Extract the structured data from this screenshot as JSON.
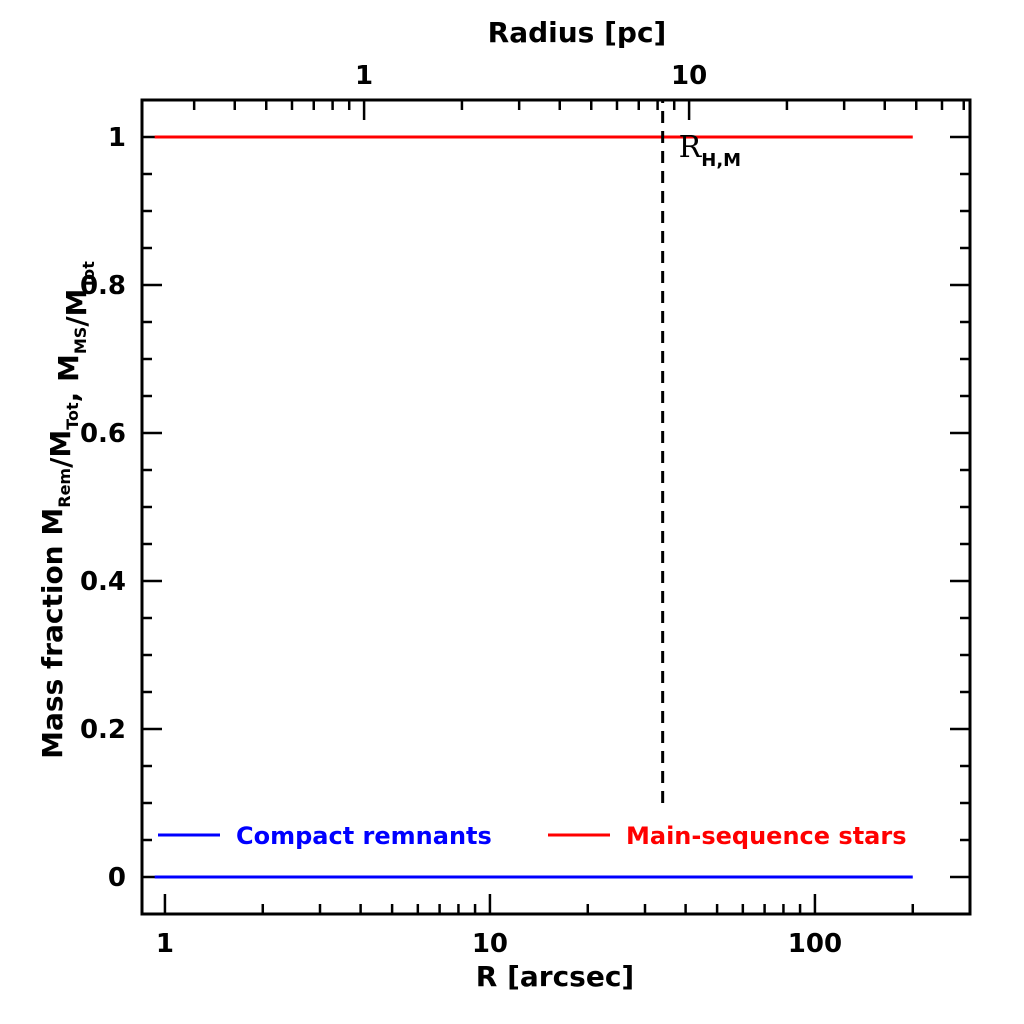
{
  "chart_data": {
    "type": "line",
    "xlabel": "R [arcsec]",
    "xlabel_top": "Radius [pc]",
    "ylabel": {
      "prefix": "Mass fraction",
      "parts": [
        {
          "main": "M",
          "sub": "Rem"
        },
        {
          "main": "/M",
          "sub": "Tot"
        },
        {
          "main": ",  M",
          "sub": "MS"
        },
        {
          "main": "/M",
          "sub": "Tot"
        }
      ]
    },
    "x_scale": "log",
    "xlim": [
      0.85,
      300
    ],
    "ylim": [
      -0.05,
      1.05
    ],
    "x_ticks": [
      1,
      10,
      100
    ],
    "x_tick_labels": [
      "1",
      "10",
      "100"
    ],
    "y_ticks": [
      0,
      0.2,
      0.4,
      0.6,
      0.8,
      1
    ],
    "y_tick_labels": [
      "0",
      "0.2",
      "0.4",
      "0.6",
      "0.8",
      "1"
    ],
    "top_x_ticks": [
      1,
      10
    ],
    "top_x_tick_labels": [
      "1",
      "10"
    ],
    "top_x_tick_arcsec": [
      4.1,
      41
    ],
    "series": [
      {
        "name": "Compact remnants",
        "color": "#0000ff",
        "x": [
          0.93,
          200
        ],
        "y": [
          0,
          0
        ]
      },
      {
        "name": "Main-sequence stars",
        "color": "#ff0000",
        "x": [
          0.93,
          200
        ],
        "y": [
          1,
          1
        ]
      }
    ],
    "vline": {
      "x": 34,
      "y_range": [
        0.1,
        1.05
      ],
      "style": "dashed",
      "label_main": "R",
      "label_sub": "H,M"
    },
    "legend_placement": "bottom",
    "grid": false
  }
}
